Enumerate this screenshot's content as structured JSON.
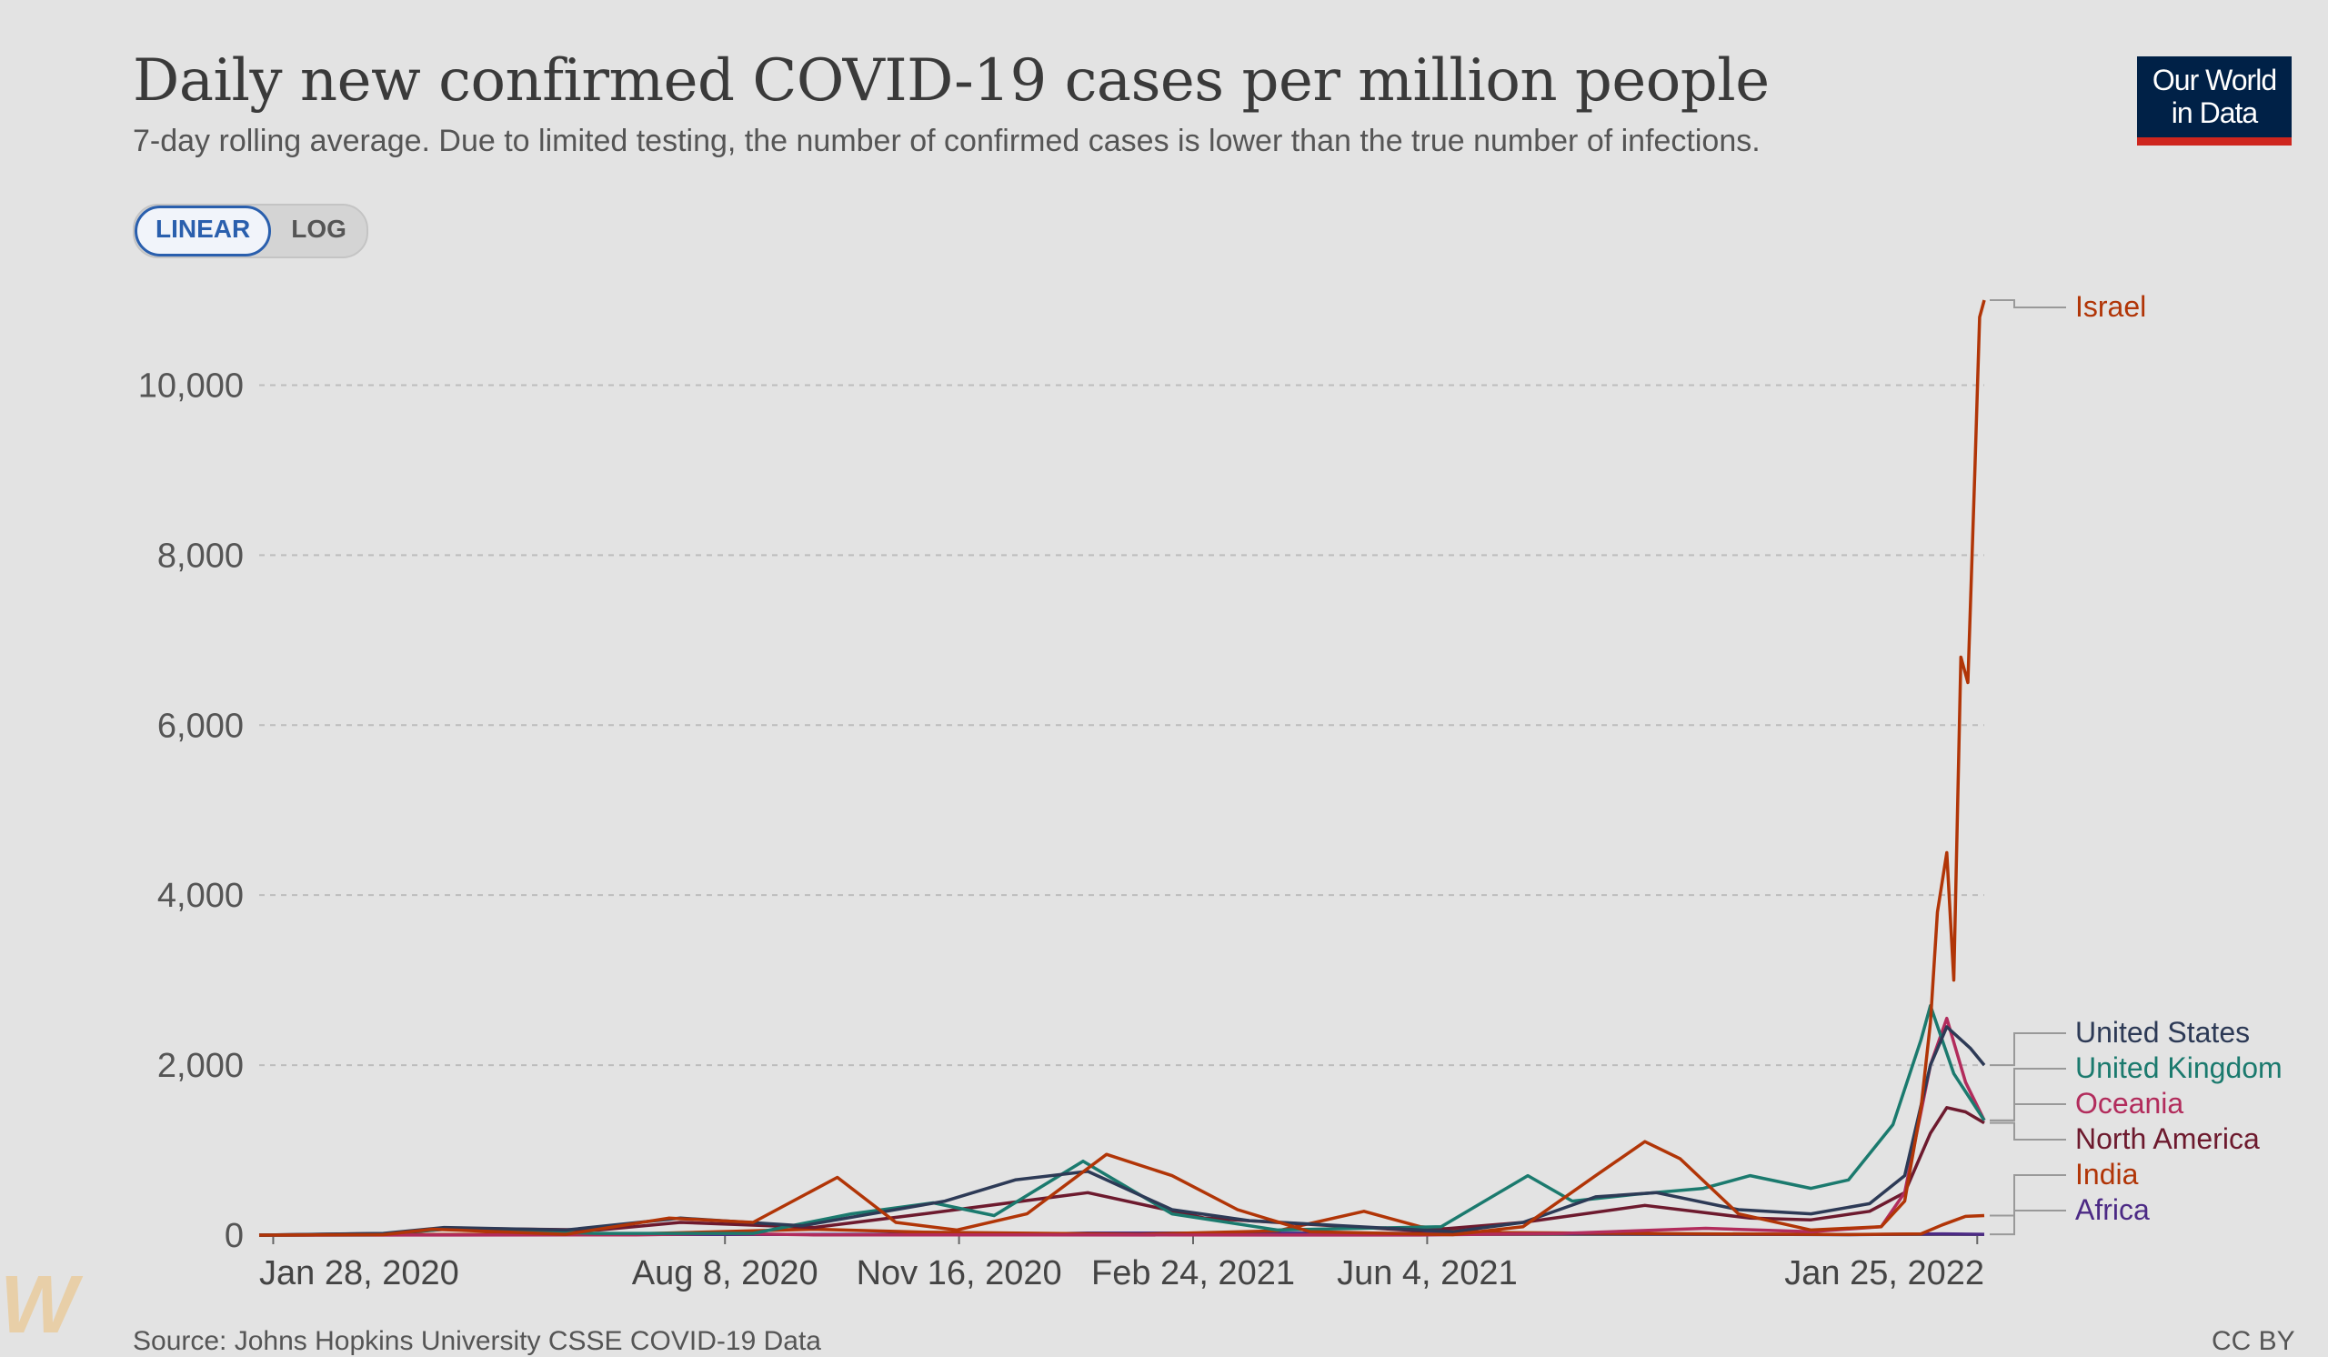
{
  "header": {
    "title": "Daily new confirmed COVID-19 cases per million people",
    "subtitle": "7-day rolling average. Due to limited testing, the number of confirmed cases is lower than the true number of infections."
  },
  "logo": {
    "line1": "Our World",
    "line2": "in Data",
    "bg_color": "#002147",
    "accent_color": "#ce261e"
  },
  "scale_toggle": {
    "linear_label": "LINEAR",
    "log_label": "LOG",
    "selected": "LINEAR"
  },
  "footer": {
    "source": "Source: Johns Hopkins University CSSE COVID-19 Data",
    "license": "CC BY"
  },
  "chart_data": {
    "type": "line",
    "title": "Daily new confirmed COVID-19 cases per million people",
    "ylim": [
      0,
      11000
    ],
    "yticks": [
      0,
      2000,
      4000,
      6000,
      8000,
      10000
    ],
    "ytick_labels": [
      "0",
      "2,000",
      "4,000",
      "6,000",
      "8,000",
      "10,000"
    ],
    "xlim": [
      "2020-01-22",
      "2022-01-28"
    ],
    "xticks": [
      "2020-01-28",
      "2020-08-08",
      "2020-11-16",
      "2021-02-24",
      "2021-06-04",
      "2022-01-25"
    ],
    "xtick_labels": [
      "Jan 28, 2020",
      "Aug 8, 2020",
      "Nov 16, 2020",
      "Feb 24, 2021",
      "Jun 4, 2021",
      "Jan 25, 2022"
    ],
    "grid": true,
    "series": [
      {
        "name": "Africa",
        "color": "#4c2a85",
        "x": [
          "2020-01-22",
          "2020-07-20",
          "2020-12-15",
          "2021-01-10",
          "2021-07-15",
          "2021-12-01",
          "2022-01-10",
          "2022-01-28"
        ],
        "y": [
          0,
          8,
          10,
          25,
          20,
          5,
          15,
          10
        ]
      },
      {
        "name": "India",
        "color": "#b13507",
        "x": [
          "2020-01-22",
          "2020-07-01",
          "2020-09-15",
          "2020-11-01",
          "2021-02-01",
          "2021-04-01",
          "2021-05-08",
          "2021-06-01",
          "2021-07-01",
          "2021-12-01",
          "2022-01-01",
          "2022-01-10",
          "2022-01-20",
          "2022-01-28"
        ],
        "y": [
          0,
          15,
          70,
          35,
          10,
          50,
          280,
          100,
          30,
          6,
          15,
          120,
          220,
          230
        ]
      },
      {
        "name": "North America",
        "color": "#6d1a2e",
        "x": [
          "2020-01-22",
          "2020-03-20",
          "2020-04-15",
          "2020-06-15",
          "2020-07-20",
          "2020-09-15",
          "2020-11-01",
          "2021-01-10",
          "2021-03-01",
          "2021-06-01",
          "2021-07-15",
          "2021-09-05",
          "2021-10-20",
          "2021-11-15",
          "2021-12-10",
          "2021-12-25",
          "2022-01-05",
          "2022-01-12",
          "2022-01-20",
          "2022-01-28"
        ],
        "y": [
          0,
          20,
          80,
          60,
          150,
          90,
          250,
          500,
          200,
          50,
          150,
          350,
          200,
          180,
          280,
          500,
          1200,
          1500,
          1450,
          1320
        ]
      },
      {
        "name": "Oceania",
        "color": "#b22c5c",
        "x": [
          "2020-01-22",
          "2020-07-01",
          "2020-08-05",
          "2020-09-15",
          "2021-06-01",
          "2021-08-01",
          "2021-10-01",
          "2021-11-15",
          "2021-12-15",
          "2021-12-25",
          "2022-01-05",
          "2022-01-12",
          "2022-01-20",
          "2022-01-28"
        ],
        "y": [
          0,
          3,
          20,
          3,
          1,
          20,
          80,
          40,
          100,
          500,
          2000,
          2550,
          1800,
          1350
        ]
      },
      {
        "name": "United Kingdom",
        "color": "#1b7a6e",
        "x": [
          "2020-01-22",
          "2020-03-10",
          "2020-04-10",
          "2020-06-15",
          "2020-08-20",
          "2020-10-01",
          "2020-11-05",
          "2020-12-01",
          "2021-01-08",
          "2021-02-15",
          "2021-04-01",
          "2021-06-10",
          "2021-07-17",
          "2021-08-05",
          "2021-09-01",
          "2021-09-30",
          "2021-10-20",
          "2021-11-15",
          "2021-12-01",
          "2021-12-20",
          "2022-01-01",
          "2022-01-05",
          "2022-01-15",
          "2022-01-28"
        ],
        "y": [
          0,
          5,
          70,
          20,
          20,
          250,
          380,
          230,
          870,
          250,
          60,
          100,
          700,
          400,
          480,
          550,
          700,
          550,
          650,
          1300,
          2300,
          2700,
          1900,
          1350
        ]
      },
      {
        "name": "United States",
        "color": "#2d3a56",
        "x": [
          "2020-01-22",
          "2020-03-15",
          "2020-04-10",
          "2020-06-01",
          "2020-07-20",
          "2020-09-10",
          "2020-11-10",
          "2020-12-10",
          "2021-01-10",
          "2021-02-15",
          "2021-03-20",
          "2021-06-15",
          "2021-07-15",
          "2021-08-15",
          "2021-09-10",
          "2021-10-15",
          "2021-11-15",
          "2021-12-10",
          "2021-12-25",
          "2022-01-05",
          "2022-01-12",
          "2022-01-18",
          "2022-01-22",
          "2022-01-28"
        ],
        "y": [
          0,
          20,
          90,
          60,
          200,
          110,
          400,
          650,
          750,
          300,
          170,
          40,
          150,
          450,
          500,
          300,
          250,
          370,
          700,
          2000,
          2450,
          2300,
          2200,
          2000
        ]
      },
      {
        "name": "Israel",
        "color": "#b13507",
        "x": [
          "2020-01-22",
          "2020-03-15",
          "2020-04-05",
          "2020-06-01",
          "2020-07-15",
          "2020-08-20",
          "2020-09-25",
          "2020-10-20",
          "2020-11-15",
          "2020-12-15",
          "2021-01-18",
          "2021-02-15",
          "2021-03-15",
          "2021-04-15",
          "2021-06-15",
          "2021-07-15",
          "2021-08-15",
          "2021-09-05",
          "2021-09-20",
          "2021-10-15",
          "2021-11-15",
          "2021-12-15",
          "2021-12-25",
          "2022-01-01",
          "2022-01-05",
          "2022-01-08",
          "2022-01-12",
          "2022-01-15",
          "2022-01-18",
          "2022-01-21",
          "2022-01-24",
          "2022-01-26",
          "2022-01-28"
        ],
        "y": [
          0,
          5,
          70,
          10,
          200,
          150,
          680,
          150,
          60,
          250,
          950,
          700,
          300,
          40,
          5,
          100,
          700,
          1100,
          900,
          250,
          60,
          100,
          400,
          1500,
          2500,
          3800,
          4500,
          3000,
          6800,
          6500,
          9000,
          10800,
          11000
        ]
      }
    ]
  }
}
